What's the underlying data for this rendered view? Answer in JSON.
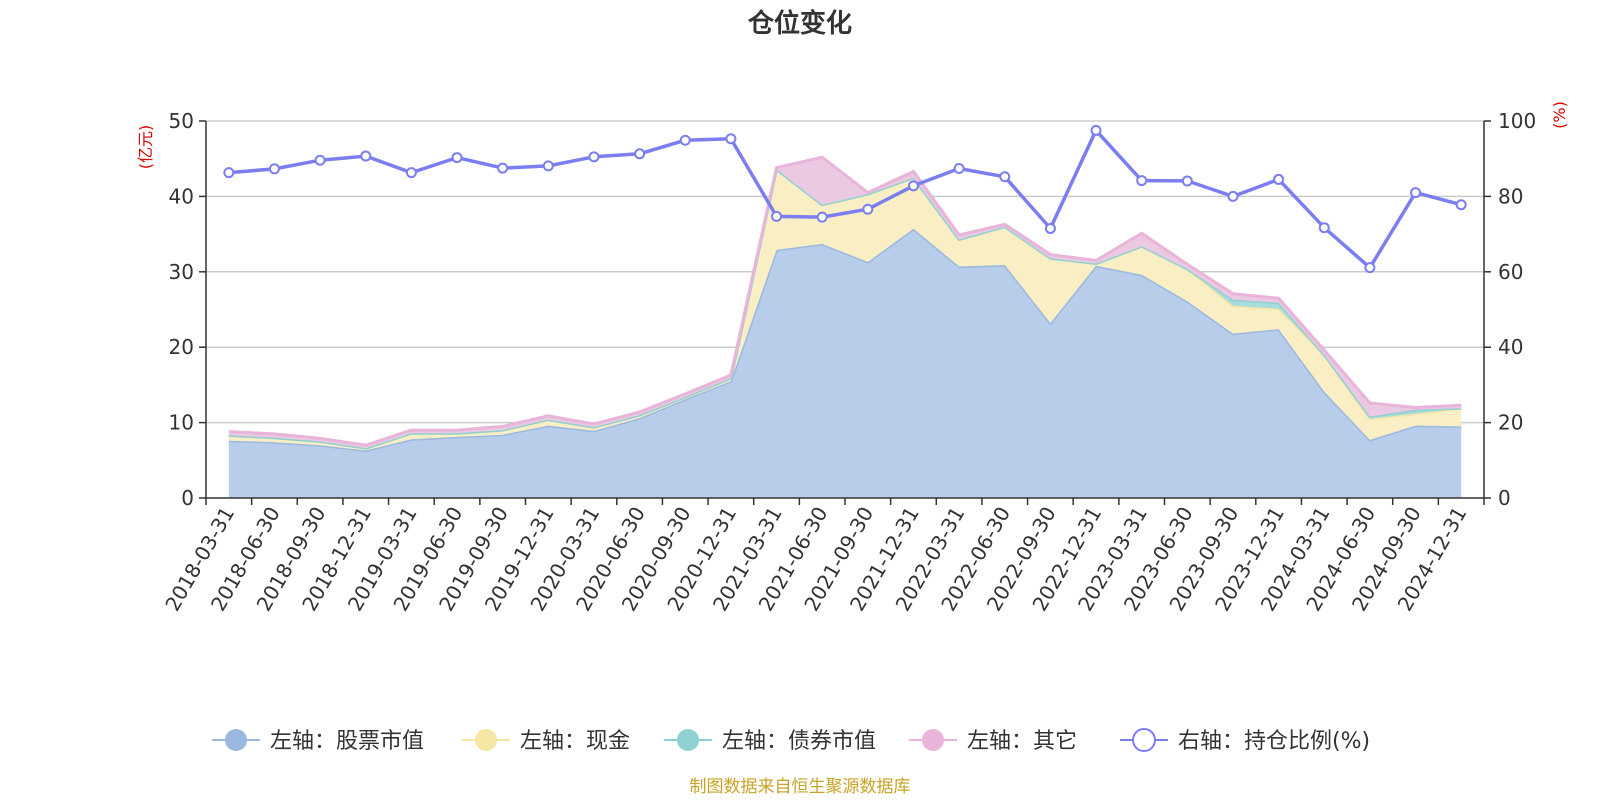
{
  "chart_data": {
    "type": "area",
    "title": "仓位变化",
    "left_axis": {
      "unit": "(亿元)",
      "ylim": [
        0,
        50
      ],
      "ticks": [
        0,
        10,
        20,
        30,
        40,
        50
      ]
    },
    "right_axis": {
      "unit": "(%)",
      "ylim": [
        0,
        100
      ],
      "ticks": [
        0,
        20,
        40,
        60,
        80,
        100
      ]
    },
    "grid": true,
    "legend_position": "bottom",
    "categories": [
      "2018-03-31",
      "2018-06-30",
      "2018-09-30",
      "2018-12-31",
      "2019-03-31",
      "2019-06-30",
      "2019-09-30",
      "2019-12-31",
      "2020-03-31",
      "2020-06-30",
      "2020-09-30",
      "2020-12-31",
      "2021-03-31",
      "2021-06-30",
      "2021-09-30",
      "2021-12-31",
      "2022-03-31",
      "2022-06-30",
      "2022-09-30",
      "2022-12-31",
      "2023-03-31",
      "2023-06-30",
      "2023-09-30",
      "2023-12-31",
      "2024-03-31",
      "2024-06-30",
      "2024-09-30",
      "2024-12-31"
    ],
    "stacked_series": [
      {
        "name": "左轴：股票市值",
        "color": "#9bb8e0",
        "fill": "#b8cdea",
        "values": [
          7.6,
          7.4,
          7.0,
          6.3,
          7.8,
          8.1,
          8.4,
          9.6,
          8.9,
          10.6,
          13.1,
          15.5,
          32.9,
          33.7,
          31.3,
          35.7,
          30.7,
          30.9,
          23.2,
          30.8,
          29.6,
          26.1,
          21.8,
          22.4,
          14.1,
          7.7,
          9.6,
          9.5
        ]
      },
      {
        "name": "左轴：现金",
        "color": "#f5e6a3",
        "fill": "#faeec4",
        "values": [
          0.7,
          0.6,
          0.5,
          0.3,
          0.8,
          0.5,
          0.6,
          0.8,
          0.5,
          0.4,
          0.3,
          0.4,
          10.7,
          5.2,
          9.0,
          6.8,
          3.6,
          5.1,
          8.6,
          0.3,
          3.8,
          4.3,
          3.7,
          2.7,
          4.9,
          2.8,
          1.6,
          2.4
        ]
      },
      {
        "name": "左轴：债券市值",
        "color": "#8fd1d1",
        "fill": "#a9dcdc",
        "values": [
          0,
          0,
          0,
          0,
          0,
          0,
          0,
          0,
          0,
          0,
          0,
          0,
          0,
          0,
          0,
          0,
          0,
          0,
          0,
          0,
          0,
          0,
          0.8,
          0.8,
          0,
          0.3,
          0.5,
          0
        ]
      },
      {
        "name": "左轴：其它",
        "color": "#e8b4d9",
        "fill": "#ecc9e2",
        "values": [
          0.5,
          0.5,
          0.4,
          0.4,
          0.4,
          0.4,
          0.5,
          0.5,
          0.4,
          0.4,
          0.4,
          0.4,
          0.2,
          6.3,
          0.2,
          0.8,
          0.6,
          0.3,
          0.5,
          0.4,
          1.7,
          0.6,
          0.8,
          0.6,
          0.6,
          1.8,
          0.3,
          0.4
        ]
      }
    ],
    "line_series": {
      "name": "右轴：持仓比例(%)",
      "color": "#7b7ef0",
      "values": [
        86.3,
        87.3,
        89.6,
        90.7,
        86.3,
        90.3,
        87.5,
        88.1,
        90.5,
        91.3,
        94.9,
        95.3,
        74.7,
        74.5,
        76.6,
        82.8,
        87.4,
        85.2,
        71.5,
        97.5,
        84.2,
        84.1,
        80.0,
        84.5,
        71.7,
        61.1,
        81.0,
        77.8
      ]
    },
    "source": "制图数据来自恒生聚源数据库"
  }
}
